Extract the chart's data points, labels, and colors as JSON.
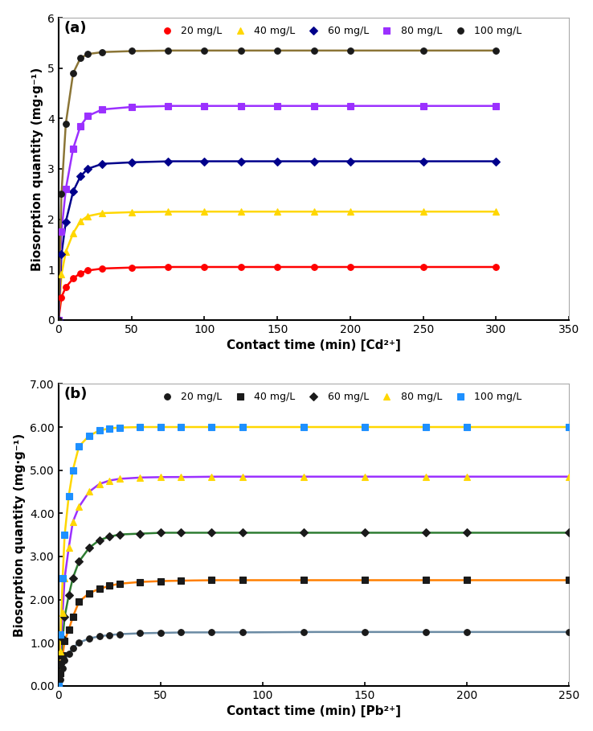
{
  "panel_a": {
    "label": "(a)",
    "xlabel": "Contact time (min) [Cd²⁺]",
    "ylabel": "Biosorption quantity (mg·g⁻¹)",
    "xlim": [
      0,
      350
    ],
    "ylim": [
      0,
      6
    ],
    "yticks": [
      0,
      1,
      2,
      3,
      4,
      5,
      6
    ],
    "xticks": [
      0,
      50,
      100,
      150,
      200,
      250,
      300,
      350
    ],
    "series": [
      {
        "label": "20 mg/L",
        "line_color": "#FF0000",
        "marker": "o",
        "marker_fc": "#FF0000",
        "marker_ec": "#FF0000",
        "points_x": [
          0,
          2,
          5,
          10,
          15,
          20,
          30,
          50,
          75,
          100,
          125,
          150,
          175,
          200,
          250,
          300
        ],
        "points_y": [
          0,
          0.45,
          0.65,
          0.82,
          0.93,
          0.98,
          1.02,
          1.04,
          1.05,
          1.05,
          1.05,
          1.05,
          1.05,
          1.05,
          1.05,
          1.05
        ]
      },
      {
        "label": "40 mg/L",
        "line_color": "#FFD700",
        "marker": "^",
        "marker_fc": "#FFD700",
        "marker_ec": "#FFD700",
        "points_x": [
          0,
          2,
          5,
          10,
          15,
          20,
          30,
          50,
          75,
          100,
          125,
          150,
          175,
          200,
          250,
          300
        ],
        "points_y": [
          0,
          0.9,
          1.35,
          1.72,
          1.96,
          2.06,
          2.12,
          2.14,
          2.15,
          2.15,
          2.15,
          2.15,
          2.15,
          2.15,
          2.15,
          2.15
        ]
      },
      {
        "label": "60 mg/L",
        "line_color": "#00008B",
        "marker": "D",
        "marker_fc": "#00008B",
        "marker_ec": "#00008B",
        "points_x": [
          0,
          2,
          5,
          10,
          15,
          20,
          30,
          50,
          75,
          100,
          125,
          150,
          175,
          200,
          250,
          300
        ],
        "points_y": [
          0,
          1.3,
          1.95,
          2.55,
          2.85,
          3.0,
          3.1,
          3.13,
          3.15,
          3.15,
          3.15,
          3.15,
          3.15,
          3.15,
          3.15,
          3.15
        ]
      },
      {
        "label": "80 mg/L",
        "line_color": "#9B30FF",
        "marker": "s",
        "marker_fc": "#9B30FF",
        "marker_ec": "#9B30FF",
        "points_x": [
          0,
          2,
          5,
          10,
          15,
          20,
          30,
          50,
          75,
          100,
          125,
          150,
          175,
          200,
          250,
          300
        ],
        "points_y": [
          0,
          1.75,
          2.6,
          3.4,
          3.85,
          4.05,
          4.18,
          4.23,
          4.25,
          4.25,
          4.25,
          4.25,
          4.25,
          4.25,
          4.25,
          4.25
        ]
      },
      {
        "label": "100 mg/L",
        "line_color": "#8B7536",
        "marker": "o",
        "marker_fc": "#1a1a1a",
        "marker_ec": "#1a1a1a",
        "points_x": [
          0,
          2,
          5,
          10,
          15,
          20,
          30,
          50,
          75,
          100,
          125,
          150,
          175,
          200,
          250,
          300
        ],
        "points_y": [
          0,
          2.5,
          3.9,
          4.9,
          5.2,
          5.28,
          5.32,
          5.34,
          5.35,
          5.35,
          5.35,
          5.35,
          5.35,
          5.35,
          5.35,
          5.35
        ]
      }
    ]
  },
  "panel_b": {
    "label": "(b)",
    "xlabel": "Contact time (min) [Pb²⁺]",
    "ylabel": "Biosorption quantity (mg·g⁻¹)",
    "xlim": [
      0,
      250
    ],
    "ylim": [
      0,
      7.0
    ],
    "yticks": [
      0.0,
      1.0,
      2.0,
      3.0,
      4.0,
      5.0,
      6.0,
      7.0
    ],
    "xticks": [
      0,
      50,
      100,
      150,
      200,
      250
    ],
    "series": [
      {
        "label": "20 mg/L",
        "line_color": "#6B8BA4",
        "marker": "o",
        "marker_fc": "#1a1a1a",
        "marker_ec": "#1a1a1a",
        "points_x": [
          0,
          1,
          2,
          3,
          5,
          7,
          10,
          15,
          20,
          25,
          30,
          40,
          50,
          60,
          75,
          90,
          120,
          150,
          180,
          200,
          250
        ],
        "points_y": [
          0,
          0.15,
          0.4,
          0.6,
          0.75,
          0.88,
          1.0,
          1.1,
          1.15,
          1.18,
          1.2,
          1.22,
          1.23,
          1.24,
          1.24,
          1.24,
          1.25,
          1.25,
          1.25,
          1.25,
          1.25
        ]
      },
      {
        "label": "40 mg/L",
        "line_color": "#FF7F00",
        "marker": "s",
        "marker_fc": "#1a1a1a",
        "marker_ec": "#1a1a1a",
        "points_x": [
          0,
          1,
          2,
          3,
          5,
          7,
          10,
          15,
          20,
          25,
          30,
          40,
          50,
          60,
          75,
          90,
          120,
          150,
          180,
          200,
          250
        ],
        "points_y": [
          0,
          0.3,
          0.7,
          1.05,
          1.3,
          1.6,
          1.95,
          2.15,
          2.25,
          2.32,
          2.37,
          2.41,
          2.43,
          2.44,
          2.45,
          2.45,
          2.45,
          2.45,
          2.45,
          2.45,
          2.45
        ]
      },
      {
        "label": "60 mg/L",
        "line_color": "#2E7D32",
        "marker": "D",
        "marker_fc": "#1a1a1a",
        "marker_ec": "#1a1a1a",
        "points_x": [
          0,
          1,
          2,
          3,
          5,
          7,
          10,
          15,
          20,
          25,
          30,
          40,
          50,
          60,
          75,
          90,
          120,
          150,
          180,
          200,
          250
        ],
        "points_y": [
          0,
          0.5,
          1.1,
          1.6,
          2.1,
          2.5,
          2.88,
          3.2,
          3.38,
          3.46,
          3.51,
          3.53,
          3.55,
          3.55,
          3.55,
          3.55,
          3.55,
          3.55,
          3.55,
          3.55,
          3.55
        ]
      },
      {
        "label": "80 mg/L",
        "line_color": "#9B30FF",
        "marker": "^",
        "marker_fc": "#FFD700",
        "marker_ec": "#FFD700",
        "points_x": [
          0,
          1,
          2,
          3,
          5,
          7,
          10,
          15,
          20,
          25,
          30,
          40,
          50,
          60,
          75,
          90,
          120,
          150,
          180,
          200,
          250
        ],
        "points_y": [
          0,
          0.8,
          1.7,
          2.5,
          3.2,
          3.8,
          4.15,
          4.5,
          4.68,
          4.76,
          4.8,
          4.83,
          4.84,
          4.84,
          4.85,
          4.85,
          4.85,
          4.85,
          4.85,
          4.85,
          4.85
        ]
      },
      {
        "label": "100 mg/L",
        "line_color": "#FFD700",
        "marker": "s",
        "marker_fc": "#1E90FF",
        "marker_ec": "#1E90FF",
        "points_x": [
          0,
          1,
          2,
          3,
          5,
          7,
          10,
          15,
          20,
          25,
          30,
          40,
          50,
          60,
          75,
          90,
          120,
          150,
          180,
          200,
          250
        ],
        "points_y": [
          0,
          1.2,
          2.5,
          3.5,
          4.4,
          5.0,
          5.55,
          5.8,
          5.92,
          5.97,
          5.99,
          6.0,
          6.0,
          6.0,
          6.0,
          6.0,
          6.0,
          6.0,
          6.0,
          6.0,
          6.0
        ]
      }
    ]
  },
  "bg_color": "#FFFFFF",
  "border_color": "#AAAAAA"
}
